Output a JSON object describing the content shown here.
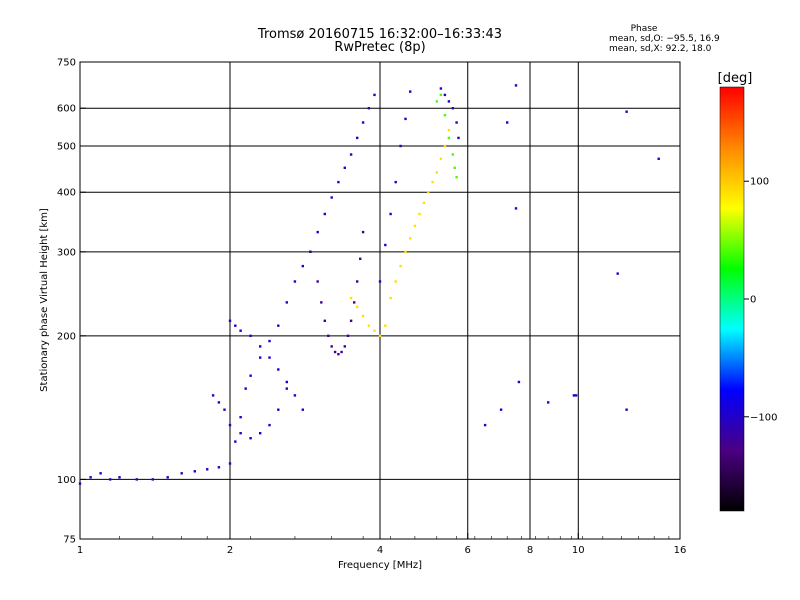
{
  "chart_data": {
    "type": "scatter",
    "title": "Tromsø 20160715 16:32:00–16:33:43",
    "subtitle": "RwPretec (8p)",
    "xlabel": "Frequency [MHz]",
    "ylabel": "Stationary phase Virtual Height [km]",
    "x_scale": "log",
    "y_scale": "log",
    "xlim": [
      1,
      16
    ],
    "ylim": [
      75,
      750
    ],
    "x_ticks": [
      1,
      2,
      4,
      6,
      8,
      10,
      16
    ],
    "x_tick_labels": [
      "1",
      "2",
      "4",
      "6",
      "8",
      "10",
      "16"
    ],
    "y_ticks": [
      75,
      100,
      200,
      300,
      400,
      500,
      600,
      750
    ],
    "y_tick_labels": [
      "75",
      "100",
      "200",
      "300",
      "400",
      "500",
      "600",
      "750"
    ],
    "grid": true,
    "stats": {
      "heading": "Phase",
      "o_line": "mean, sd,O: −95.5, 16.9",
      "x_line": "mean, sd,X:  92.2, 18.0"
    },
    "colorbar": {
      "label": "[deg]",
      "range": [
        -180,
        180
      ],
      "ticks": [
        100,
        0,
        -100
      ],
      "tick_labels": [
        "100",
        "0",
        "−100"
      ],
      "colors": [
        "#ff0000",
        "#ff8800",
        "#ffff00",
        "#00ff00",
        "#00ffff",
        "#0000ff",
        "#4b0082",
        "#000000"
      ]
    },
    "series": [
      {
        "trace": "o-mode",
        "phase": -100,
        "x": [
          1.0,
          1.05,
          1.1,
          1.15,
          1.2,
          1.3,
          1.4,
          1.5,
          1.6,
          1.7,
          1.8,
          1.9,
          2.0,
          2.05,
          2.1,
          2.15,
          2.2,
          2.3,
          2.4,
          2.5,
          2.6,
          2.7,
          2.8,
          2.9,
          3.0,
          3.1,
          3.2,
          3.3,
          3.4,
          3.5,
          3.6,
          3.7,
          3.8,
          3.9,
          4.0,
          4.1,
          4.2,
          4.3,
          4.4,
          4.5,
          4.6
        ],
        "y": [
          98,
          101,
          103,
          100,
          101,
          100,
          100,
          101,
          103,
          104,
          105,
          106,
          108,
          120,
          135,
          155,
          165,
          180,
          195,
          210,
          235,
          260,
          280,
          300,
          330,
          360,
          390,
          420,
          450,
          480,
          520,
          560,
          600,
          640,
          260,
          310,
          360,
          420,
          500,
          570,
          650
        ]
      },
      {
        "trace": "o-mode-cusp",
        "phase": -120,
        "x": [
          2.9,
          3.0,
          3.05,
          3.1,
          3.15,
          3.2,
          3.25,
          3.3,
          3.35,
          3.4,
          3.45,
          3.5,
          3.55,
          3.6,
          3.65,
          3.7
        ],
        "y": [
          300,
          260,
          235,
          215,
          200,
          190,
          185,
          183,
          185,
          190,
          200,
          215,
          235,
          260,
          290,
          330
        ]
      },
      {
        "trace": "f1-ledge",
        "phase": -95,
        "x": [
          2.0,
          2.05,
          2.1,
          2.2,
          2.3,
          2.4,
          2.5,
          2.6,
          2.7,
          2.8
        ],
        "y": [
          215,
          210,
          205,
          200,
          190,
          180,
          170,
          160,
          150,
          140
        ]
      },
      {
        "trace": "e-ledge",
        "phase": -100,
        "x": [
          1.85,
          1.9,
          1.95,
          2.0,
          2.1,
          2.2,
          2.3,
          2.4,
          2.5,
          2.6
        ],
        "y": [
          150,
          145,
          140,
          130,
          125,
          122,
          125,
          130,
          140,
          155
        ]
      },
      {
        "trace": "x-mode",
        "phase": 90,
        "x": [
          3.5,
          3.6,
          3.7,
          3.8,
          3.9,
          4.0,
          4.1,
          4.2,
          4.3,
          4.4,
          4.5,
          4.6,
          4.7,
          4.8,
          4.9,
          5.0,
          5.1,
          5.2,
          5.3,
          5.4,
          5.5,
          5.6
        ],
        "y": [
          240,
          230,
          220,
          210,
          205,
          200,
          210,
          240,
          260,
          280,
          300,
          320,
          340,
          360,
          380,
          400,
          420,
          440,
          470,
          500,
          540,
          600
        ]
      },
      {
        "trace": "x-mode-upper",
        "phase": 40,
        "x": [
          5.2,
          5.3,
          5.4,
          5.5,
          5.6,
          5.65,
          5.7
        ],
        "y": [
          620,
          640,
          580,
          520,
          480,
          450,
          430
        ]
      },
      {
        "trace": "high-freq-scatter",
        "phase": -100,
        "x": [
          5.3,
          5.4,
          5.5,
          5.6,
          5.7,
          5.75,
          6.5,
          7.0,
          7.2,
          7.5,
          7.5,
          7.6,
          8.7,
          9.8,
          9.9,
          12.5,
          12.5,
          14.5,
          12.0
        ],
        "y": [
          660,
          640,
          620,
          600,
          560,
          520,
          130,
          140,
          560,
          370,
          670,
          160,
          145,
          150,
          150,
          590,
          140,
          470,
          270
        ]
      }
    ]
  }
}
